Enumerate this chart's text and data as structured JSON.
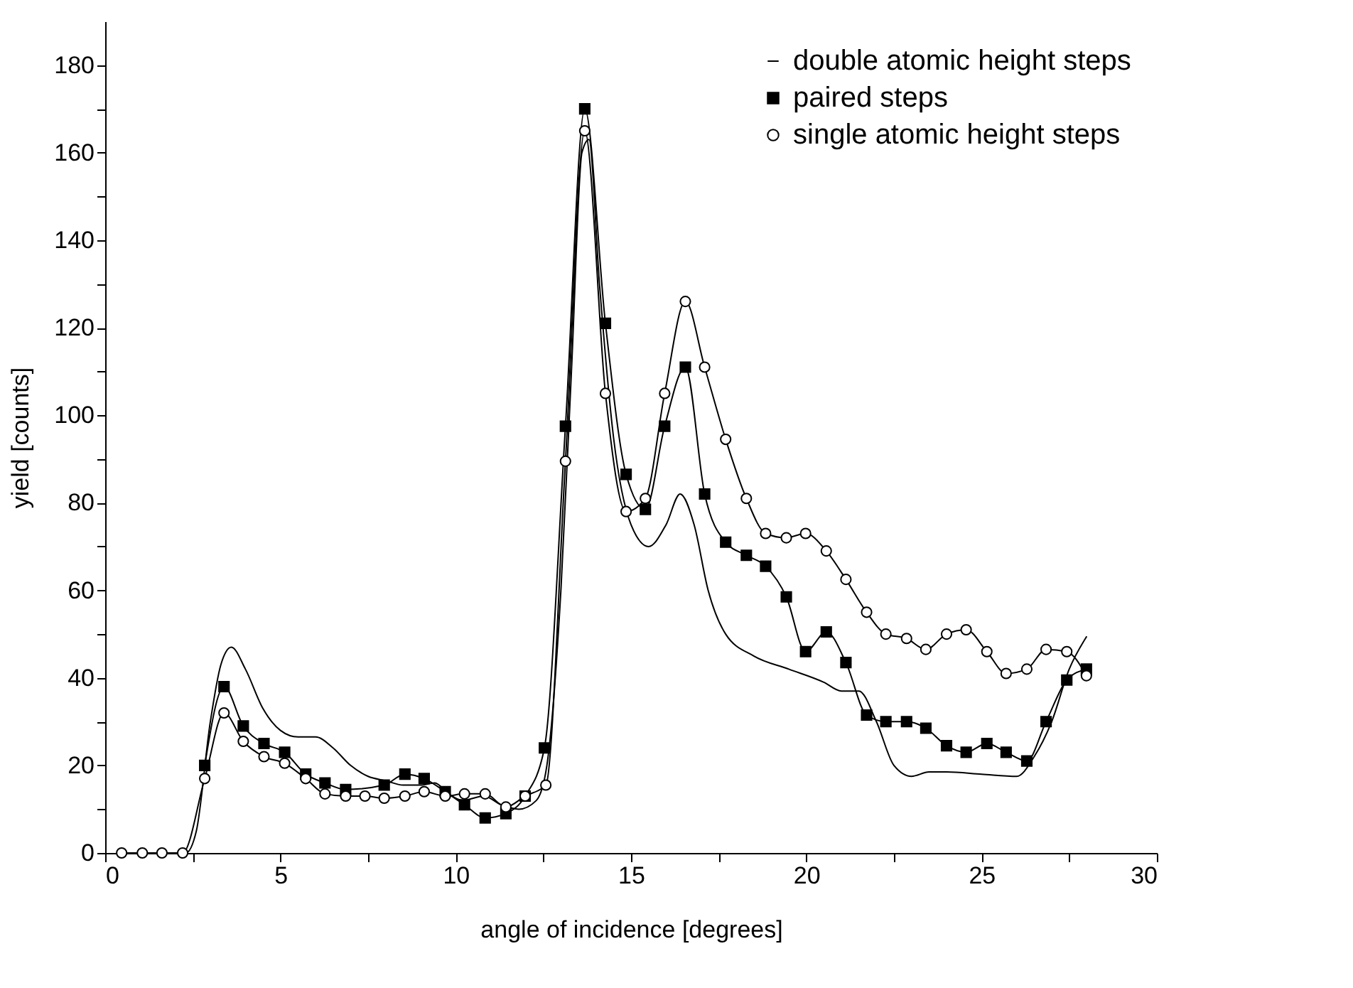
{
  "chart_data": {
    "type": "line",
    "xlabel": "angle of incidence [degrees]",
    "ylabel": "yield [counts]",
    "xlim": [
      0,
      30
    ],
    "ylim": [
      0,
      190
    ],
    "xticks": [
      0,
      {
        "value": 2.5,
        "label": null
      },
      5,
      {
        "value": 7.5,
        "label": null
      },
      10,
      {
        "value": 12.5,
        "label": null
      },
      15,
      {
        "value": 17.5,
        "label": null
      },
      20,
      {
        "value": 22.5,
        "label": null
      },
      25,
      {
        "value": 27.5,
        "label": null
      },
      30
    ],
    "yticks": [
      0,
      {
        "value": 10,
        "label": null
      },
      20,
      {
        "value": 30,
        "label": null
      },
      40,
      {
        "value": 50,
        "label": null
      },
      60,
      {
        "value": 70,
        "label": null
      },
      80,
      {
        "value": 90,
        "label": null
      },
      100,
      {
        "value": 110,
        "label": null
      },
      120,
      {
        "value": 130,
        "label": null
      },
      140,
      {
        "value": 150,
        "label": null
      },
      160,
      {
        "value": 170,
        "label": null
      },
      180
    ],
    "grid": false,
    "legend": "top right",
    "line_style": "solid",
    "series": [
      {
        "name": "double atomic height steps",
        "color": "#000000",
        "marker": "none",
        "x": [
          0.5,
          2.3,
          2.6,
          3.0,
          3.3,
          3.6,
          4.0,
          4.5,
          5.0,
          5.5,
          6.0,
          6.5,
          7.0,
          7.5,
          8.0,
          8.5,
          9.0,
          9.4,
          9.8,
          10.2,
          10.8,
          11.3,
          11.8,
          12.3,
          12.6,
          13.0,
          13.3,
          13.6,
          13.8,
          14.1,
          14.5,
          15.0,
          15.5,
          16.0,
          16.4,
          16.8,
          17.2,
          17.7,
          18.5,
          19.5,
          20.5,
          21.0,
          21.5,
          22.0,
          22.5,
          23.0,
          23.5,
          24.0,
          25.0,
          26.0,
          26.5,
          27.0,
          27.5,
          28.0
        ],
        "values": [
          0,
          0,
          5,
          30,
          43,
          47,
          42,
          33,
          28,
          26.5,
          26.5,
          24,
          20,
          17.5,
          16.5,
          15.5,
          15.5,
          16,
          13.5,
          12,
          13,
          11,
          10,
          12,
          20,
          60,
          110,
          160,
          163,
          130,
          95,
          75,
          70,
          75,
          82,
          75,
          60,
          50,
          45,
          42,
          39,
          37,
          37,
          30,
          20,
          17.5,
          18.5,
          18.5,
          18,
          17.5,
          22,
          30,
          42,
          49.5
        ]
      },
      {
        "name": "paired steps",
        "color": "#000000",
        "marker": "square",
        "x": [
          2.84,
          3.39,
          3.94,
          4.53,
          5.12,
          5.72,
          6.27,
          6.86,
          7.96,
          8.55,
          9.1,
          9.7,
          10.25,
          10.84,
          11.43,
          11.98,
          12.53,
          13.13,
          13.68,
          14.27,
          14.86,
          15.41,
          15.96,
          16.55,
          17.1,
          17.7,
          18.29,
          18.84,
          19.43,
          19.98,
          20.57,
          21.13,
          21.72,
          22.27,
          22.86,
          23.41,
          24.0,
          24.56,
          25.15,
          25.7,
          26.29,
          26.84,
          27.43,
          27.99
        ],
        "values": [
          20,
          38,
          29,
          25,
          23,
          18,
          16,
          14.5,
          15.5,
          18,
          17,
          14,
          11,
          8,
          9,
          13,
          24,
          97.5,
          170,
          121,
          86.5,
          78.5,
          97.5,
          111,
          82,
          71,
          68,
          65.5,
          58.5,
          46,
          50.5,
          43.5,
          31.5,
          30,
          30,
          28.5,
          24.5,
          23,
          25,
          23,
          21,
          30,
          39.5,
          42
        ]
      },
      {
        "name": "single atomic height steps",
        "color": "#000000",
        "marker": "circle",
        "x": [
          0.47,
          1.06,
          1.62,
          2.21,
          2.84,
          3.39,
          3.94,
          4.53,
          5.12,
          5.72,
          6.27,
          6.86,
          7.41,
          7.96,
          8.55,
          9.1,
          9.7,
          10.25,
          10.84,
          11.43,
          11.98,
          12.57,
          13.13,
          13.68,
          14.27,
          14.86,
          15.41,
          15.96,
          16.55,
          17.1,
          17.7,
          18.29,
          18.84,
          19.43,
          19.98,
          20.57,
          21.13,
          21.72,
          22.27,
          22.86,
          23.41,
          24.0,
          24.56,
          25.15,
          25.7,
          26.29,
          26.84,
          27.43,
          27.99
        ],
        "values": [
          0,
          0,
          0,
          0,
          17,
          32,
          25.5,
          22,
          20.5,
          17,
          13.5,
          13,
          13,
          12.5,
          13,
          14,
          13,
          13.5,
          13.5,
          10.5,
          13,
          15.5,
          89.5,
          165,
          105,
          78,
          81,
          105,
          126,
          111,
          94.5,
          81,
          73,
          72,
          73,
          69,
          62.5,
          55,
          50,
          49,
          46.5,
          50,
          51,
          46,
          41,
          42,
          46.5,
          46,
          40.5
        ]
      }
    ]
  }
}
